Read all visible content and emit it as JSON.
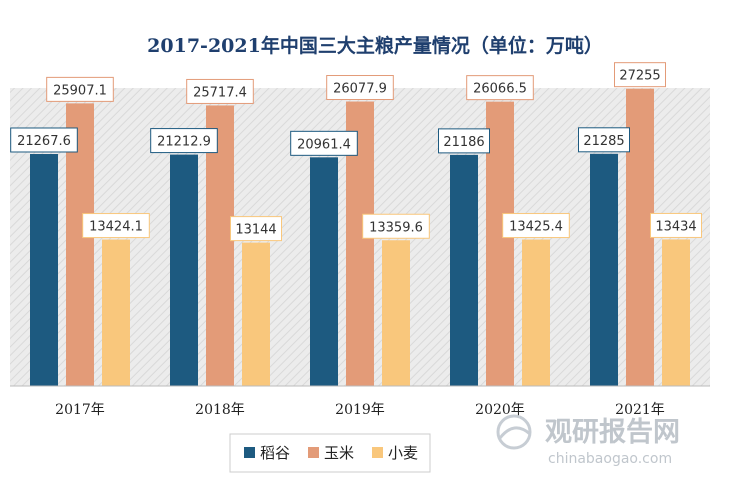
{
  "chart_data": {
    "type": "bar",
    "title": "2017-2021年中国三大主粮产量情况（单位：万吨）",
    "categories": [
      "2017年",
      "2018年",
      "2019年",
      "2020年",
      "2021年"
    ],
    "series": [
      {
        "name": "稻谷",
        "color": "#1d5a80",
        "values": [
          21267.6,
          21212.9,
          20961.4,
          21186,
          21285
        ],
        "labels": [
          "21267.6",
          "21212.9",
          "20961.4",
          "21186",
          "21285"
        ]
      },
      {
        "name": "玉米",
        "color": "#e39b78",
        "values": [
          25907.1,
          25717.4,
          26077.9,
          26066.5,
          27255
        ],
        "labels": [
          "25907.1",
          "25717.4",
          "26077.9",
          "26066.5",
          "27255"
        ]
      },
      {
        "name": "小麦",
        "color": "#f9c77c",
        "values": [
          13424.1,
          13144,
          13359.6,
          13425.4,
          13434
        ],
        "labels": [
          "13424.1",
          "13144",
          "13359.6",
          "13425.4",
          "13434"
        ]
      }
    ],
    "ylim": [
      0,
      27500
    ],
    "grid": false,
    "legend": "bottom-center"
  },
  "watermark": {
    "brand": "观研报告网",
    "url": "chinabaogao.com"
  }
}
